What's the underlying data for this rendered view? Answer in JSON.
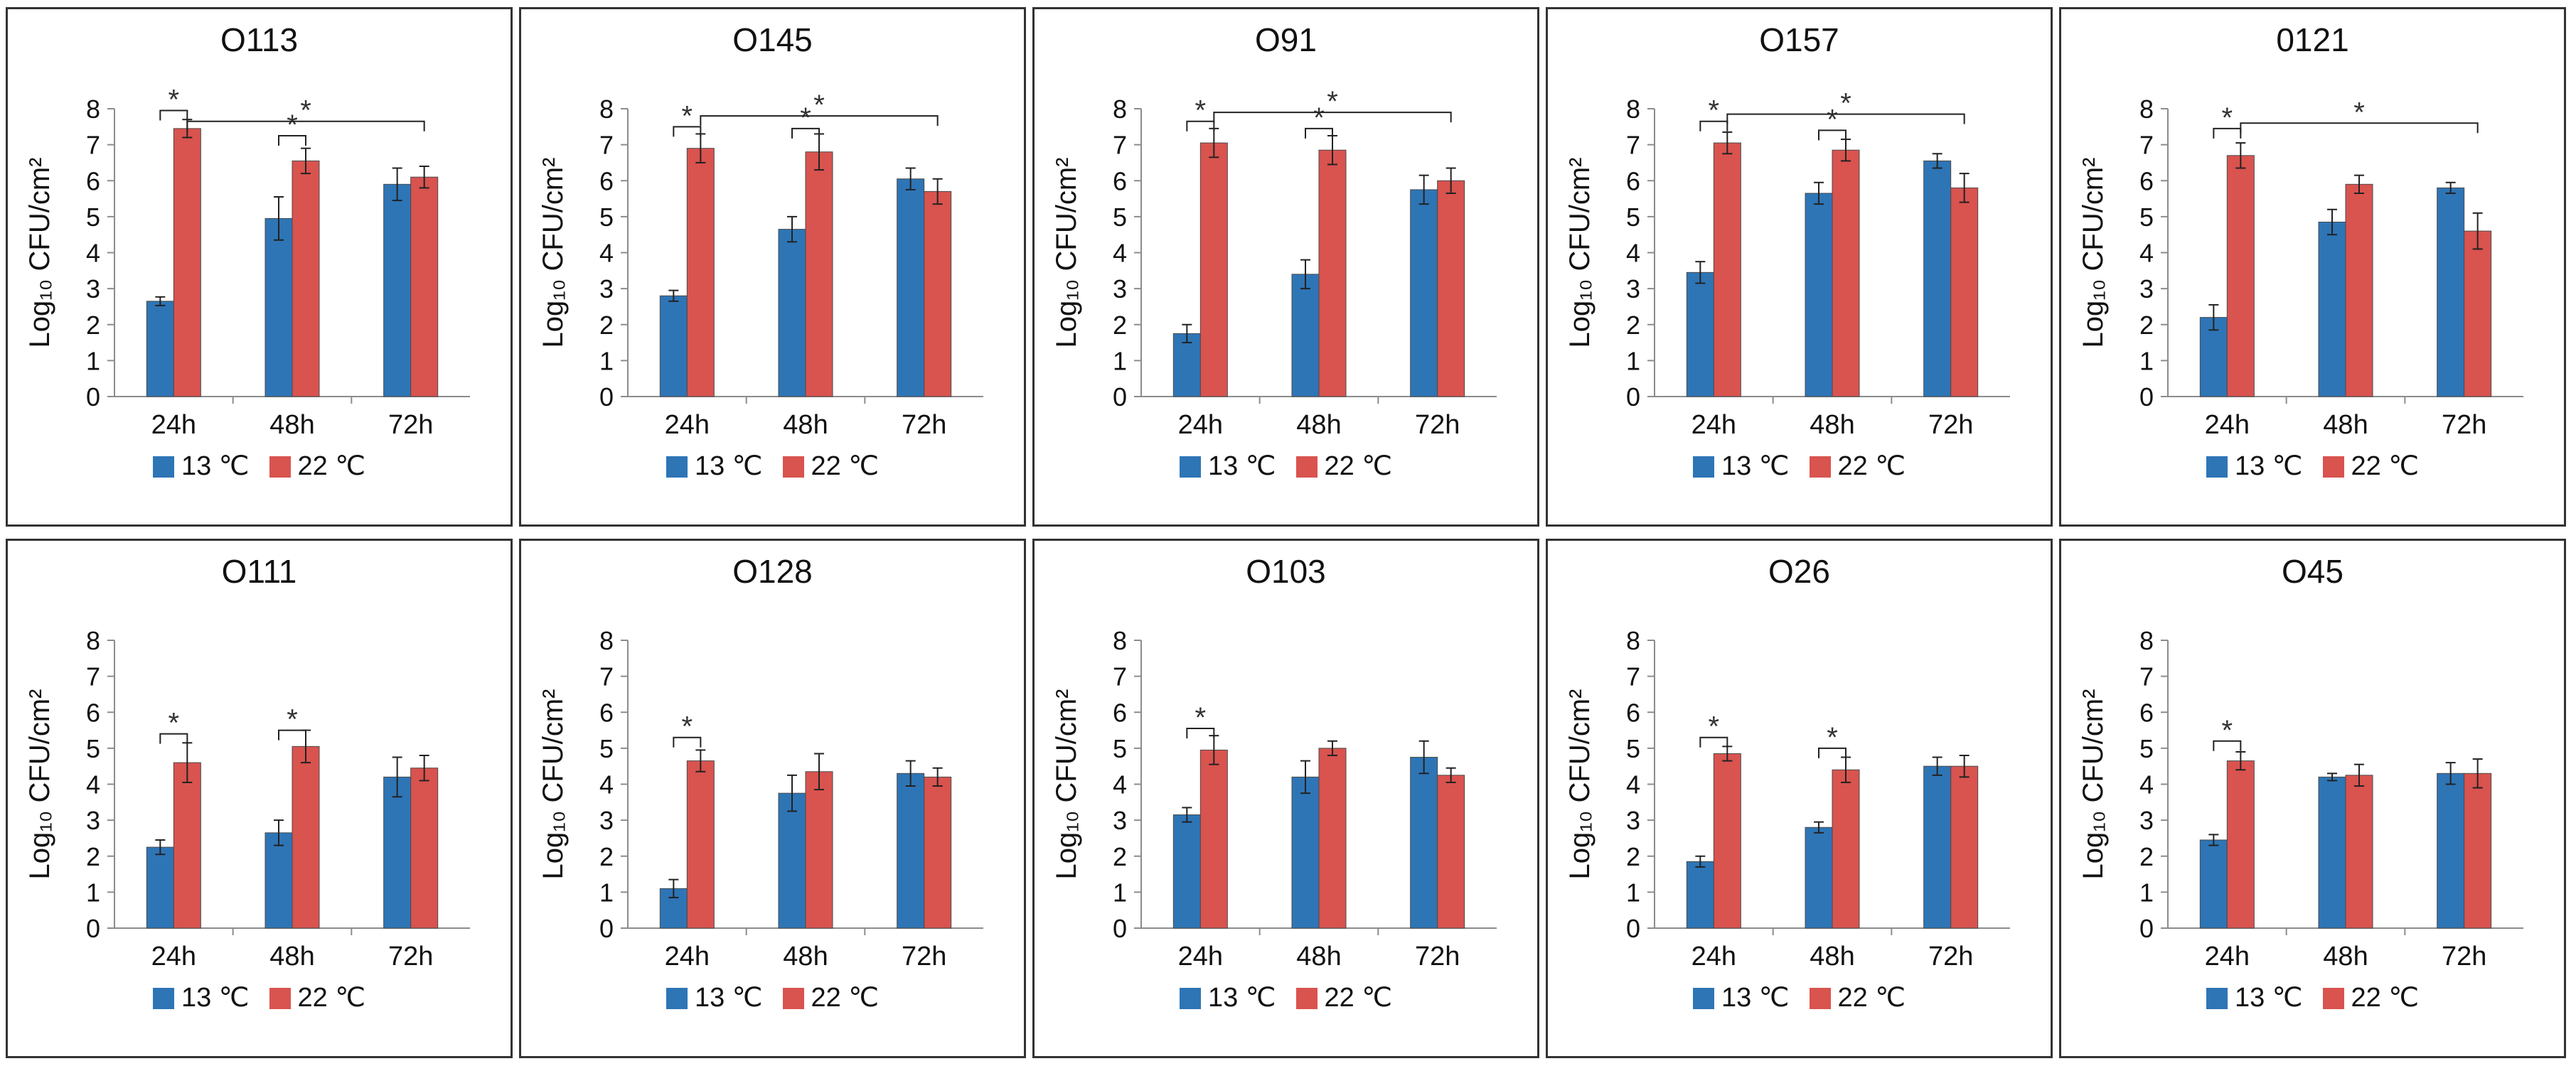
{
  "colors": {
    "series1": "#2e75b6",
    "series2": "#d9534f",
    "axis": "#8c8c8c",
    "text": "#111111",
    "border": "#333333"
  },
  "legend": {
    "series1": "13 ℃",
    "series2": "22 ℃"
  },
  "chart_data": [
    {
      "type": "bar",
      "title": "O113",
      "ylabel": "Log₁₀ CFU/cm²",
      "ylim": [
        0,
        8
      ],
      "yticks": [
        0,
        1,
        2,
        3,
        4,
        5,
        6,
        7,
        8
      ],
      "categories": [
        "24h",
        "48h",
        "72h"
      ],
      "series": [
        {
          "name": "13 ℃",
          "values": [
            2.65,
            4.95,
            5.9
          ],
          "errors": [
            0.12,
            0.6,
            0.45
          ]
        },
        {
          "name": "22 ℃",
          "values": [
            7.45,
            6.55,
            6.1
          ],
          "errors": [
            0.25,
            0.35,
            0.3
          ]
        }
      ],
      "annotations": [
        {
          "label": "*",
          "from": [
            0,
            0
          ],
          "to": [
            0,
            1
          ],
          "level": 7.95
        },
        {
          "label": "*",
          "from": [
            1,
            0
          ],
          "to": [
            1,
            1
          ],
          "level": 7.25
        },
        {
          "label": "*",
          "from": [
            0,
            1
          ],
          "to": [
            2,
            1
          ],
          "level": 7.65
        }
      ]
    },
    {
      "type": "bar",
      "title": "O145",
      "ylabel": "Log₁₀ CFU/cm²",
      "ylim": [
        0,
        8
      ],
      "yticks": [
        0,
        1,
        2,
        3,
        4,
        5,
        6,
        7,
        8
      ],
      "categories": [
        "24h",
        "48h",
        "72h"
      ],
      "series": [
        {
          "name": "13 ℃",
          "values": [
            2.8,
            4.65,
            6.05
          ],
          "errors": [
            0.15,
            0.35,
            0.3
          ]
        },
        {
          "name": "22 ℃",
          "values": [
            6.9,
            6.8,
            5.7
          ],
          "errors": [
            0.4,
            0.5,
            0.35
          ]
        }
      ],
      "annotations": [
        {
          "label": "*",
          "from": [
            0,
            0
          ],
          "to": [
            0,
            1
          ],
          "level": 7.5
        },
        {
          "label": "*",
          "from": [
            1,
            0
          ],
          "to": [
            1,
            1
          ],
          "level": 7.45
        },
        {
          "label": "*",
          "from": [
            0,
            1
          ],
          "to": [
            2,
            1
          ],
          "level": 7.8
        }
      ]
    },
    {
      "type": "bar",
      "title": "O91",
      "ylabel": "Log₁₀ CFU/cm²",
      "ylim": [
        0,
        8
      ],
      "yticks": [
        0,
        1,
        2,
        3,
        4,
        5,
        6,
        7,
        8
      ],
      "categories": [
        "24h",
        "48h",
        "72h"
      ],
      "series": [
        {
          "name": "13 ℃",
          "values": [
            1.75,
            3.4,
            5.75
          ],
          "errors": [
            0.25,
            0.4,
            0.4
          ]
        },
        {
          "name": "22 ℃",
          "values": [
            7.05,
            6.85,
            6.0
          ],
          "errors": [
            0.4,
            0.4,
            0.35
          ]
        }
      ],
      "annotations": [
        {
          "label": "*",
          "from": [
            0,
            0
          ],
          "to": [
            0,
            1
          ],
          "level": 7.65
        },
        {
          "label": "*",
          "from": [
            1,
            0
          ],
          "to": [
            1,
            1
          ],
          "level": 7.45
        },
        {
          "label": "*",
          "from": [
            0,
            1
          ],
          "to": [
            2,
            1
          ],
          "level": 7.9
        }
      ]
    },
    {
      "type": "bar",
      "title": "O157",
      "ylabel": "Log₁₀ CFU/cm²",
      "ylim": [
        0,
        8
      ],
      "yticks": [
        0,
        1,
        2,
        3,
        4,
        5,
        6,
        7,
        8
      ],
      "categories": [
        "24h",
        "48h",
        "72h"
      ],
      "series": [
        {
          "name": "13 ℃",
          "values": [
            3.45,
            5.65,
            6.55
          ],
          "errors": [
            0.3,
            0.3,
            0.2
          ]
        },
        {
          "name": "22 ℃",
          "values": [
            7.05,
            6.85,
            5.8
          ],
          "errors": [
            0.3,
            0.3,
            0.4
          ]
        }
      ],
      "annotations": [
        {
          "label": "*",
          "from": [
            0,
            0
          ],
          "to": [
            0,
            1
          ],
          "level": 7.65
        },
        {
          "label": "*",
          "from": [
            1,
            0
          ],
          "to": [
            1,
            1
          ],
          "level": 7.4
        },
        {
          "label": "*",
          "from": [
            0,
            1
          ],
          "to": [
            2,
            1
          ],
          "level": 7.85
        }
      ]
    },
    {
      "type": "bar",
      "title": "0121",
      "ylabel": "Log₁₀ CFU/cm²",
      "ylim": [
        0,
        8
      ],
      "yticks": [
        0,
        1,
        2,
        3,
        4,
        5,
        6,
        7,
        8
      ],
      "categories": [
        "24h",
        "48h",
        "72h"
      ],
      "series": [
        {
          "name": "13 ℃",
          "values": [
            2.2,
            4.85,
            5.8
          ],
          "errors": [
            0.35,
            0.35,
            0.15
          ]
        },
        {
          "name": "22 ℃",
          "values": [
            6.7,
            5.9,
            4.6
          ],
          "errors": [
            0.35,
            0.25,
            0.5
          ]
        }
      ],
      "annotations": [
        {
          "label": "*",
          "from": [
            0,
            0
          ],
          "to": [
            0,
            1
          ],
          "level": 7.45
        },
        {
          "label": "*",
          "from": [
            0,
            1
          ],
          "to": [
            2,
            1
          ],
          "level": 7.6
        }
      ]
    },
    {
      "type": "bar",
      "title": "O111",
      "ylabel": "Log₁₀ CFU/cm²",
      "ylim": [
        0,
        8
      ],
      "yticks": [
        0,
        1,
        2,
        3,
        4,
        5,
        6,
        7,
        8
      ],
      "categories": [
        "24h",
        "48h",
        "72h"
      ],
      "series": [
        {
          "name": "13 ℃",
          "values": [
            2.25,
            2.65,
            4.2
          ],
          "errors": [
            0.2,
            0.35,
            0.55
          ]
        },
        {
          "name": "22 ℃",
          "values": [
            4.6,
            5.05,
            4.45
          ],
          "errors": [
            0.55,
            0.45,
            0.35
          ]
        }
      ],
      "annotations": [
        {
          "label": "*",
          "from": [
            0,
            0
          ],
          "to": [
            0,
            1
          ],
          "level": 5.4
        },
        {
          "label": "*",
          "from": [
            1,
            0
          ],
          "to": [
            1,
            1
          ],
          "level": 5.5
        }
      ]
    },
    {
      "type": "bar",
      "title": "O128",
      "ylabel": "Log₁₀ CFU/cm²",
      "ylim": [
        0,
        8
      ],
      "yticks": [
        0,
        1,
        2,
        3,
        4,
        5,
        6,
        7,
        8
      ],
      "categories": [
        "24h",
        "48h",
        "72h"
      ],
      "series": [
        {
          "name": "13 ℃",
          "values": [
            1.1,
            3.75,
            4.3
          ],
          "errors": [
            0.25,
            0.5,
            0.35
          ]
        },
        {
          "name": "22 ℃",
          "values": [
            4.65,
            4.35,
            4.2
          ],
          "errors": [
            0.3,
            0.5,
            0.25
          ]
        }
      ],
      "annotations": [
        {
          "label": "*",
          "from": [
            0,
            0
          ],
          "to": [
            0,
            1
          ],
          "level": 5.3
        }
      ]
    },
    {
      "type": "bar",
      "title": "O103",
      "ylabel": "Log₁₀ CFU/cm²",
      "ylim": [
        0,
        8
      ],
      "yticks": [
        0,
        1,
        2,
        3,
        4,
        5,
        6,
        7,
        8
      ],
      "categories": [
        "24h",
        "48h",
        "72h"
      ],
      "series": [
        {
          "name": "13 ℃",
          "values": [
            3.15,
            4.2,
            4.75
          ],
          "errors": [
            0.2,
            0.45,
            0.45
          ]
        },
        {
          "name": "22 ℃",
          "values": [
            4.95,
            5.0,
            4.25
          ],
          "errors": [
            0.4,
            0.2,
            0.2
          ]
        }
      ],
      "annotations": [
        {
          "label": "*",
          "from": [
            0,
            0
          ],
          "to": [
            0,
            1
          ],
          "level": 5.55
        }
      ]
    },
    {
      "type": "bar",
      "title": "O26",
      "ylabel": "Log₁₀ CFU/cm²",
      "ylim": [
        0,
        8
      ],
      "yticks": [
        0,
        1,
        2,
        3,
        4,
        5,
        6,
        7,
        8
      ],
      "categories": [
        "24h",
        "48h",
        "72h"
      ],
      "series": [
        {
          "name": "13 ℃",
          "values": [
            1.85,
            2.8,
            4.5
          ],
          "errors": [
            0.15,
            0.15,
            0.25
          ]
        },
        {
          "name": "22 ℃",
          "values": [
            4.85,
            4.4,
            4.5
          ],
          "errors": [
            0.2,
            0.35,
            0.3
          ]
        }
      ],
      "annotations": [
        {
          "label": "*",
          "from": [
            0,
            0
          ],
          "to": [
            0,
            1
          ],
          "level": 5.3
        },
        {
          "label": "*",
          "from": [
            1,
            0
          ],
          "to": [
            1,
            1
          ],
          "level": 5.0
        }
      ]
    },
    {
      "type": "bar",
      "title": "O45",
      "ylabel": "Log₁₀ CFU/cm²",
      "ylim": [
        0,
        8
      ],
      "yticks": [
        0,
        1,
        2,
        3,
        4,
        5,
        6,
        7,
        8
      ],
      "categories": [
        "24h",
        "48h",
        "72h"
      ],
      "series": [
        {
          "name": "13 ℃",
          "values": [
            2.45,
            4.2,
            4.3
          ],
          "errors": [
            0.15,
            0.1,
            0.3
          ]
        },
        {
          "name": "22 ℃",
          "values": [
            4.65,
            4.25,
            4.3
          ],
          "errors": [
            0.25,
            0.3,
            0.4
          ]
        }
      ],
      "annotations": [
        {
          "label": "*",
          "from": [
            0,
            0
          ],
          "to": [
            0,
            1
          ],
          "level": 5.2
        }
      ]
    }
  ]
}
